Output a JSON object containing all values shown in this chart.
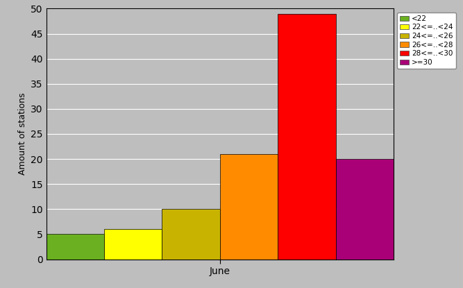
{
  "xlabel": "June",
  "ylabel": "Amount of stations",
  "ylim": [
    0,
    50
  ],
  "yticks": [
    0,
    5,
    10,
    15,
    20,
    25,
    30,
    35,
    40,
    45,
    50
  ],
  "bars": [
    {
      "label": "<22",
      "value": 5,
      "color": "#6ab020"
    },
    {
      "label": "22<=..<24",
      "value": 6,
      "color": "#ffff00"
    },
    {
      "label": "24<=..<26",
      "value": 10,
      "color": "#c8b400"
    },
    {
      "label": "26<=..<28",
      "value": 21,
      "color": "#ff8c00"
    },
    {
      "label": "28<=..<30",
      "value": 49,
      "color": "#ff0000"
    },
    {
      "label": ">=30",
      "value": 20,
      "color": "#aa0077"
    }
  ],
  "axes_bg_color": "#bebebe",
  "fig_bg_color": "#bebebe",
  "legend_colors": [
    "#6ab020",
    "#ffff00",
    "#c8b400",
    "#ff8c00",
    "#ff0000",
    "#aa0077"
  ],
  "legend_labels": [
    "<22",
    "22<=..<24",
    "24<=..<26",
    "26<=..<28",
    "28<=..<30",
    ">=30"
  ],
  "bar_edge_color": "#000000"
}
